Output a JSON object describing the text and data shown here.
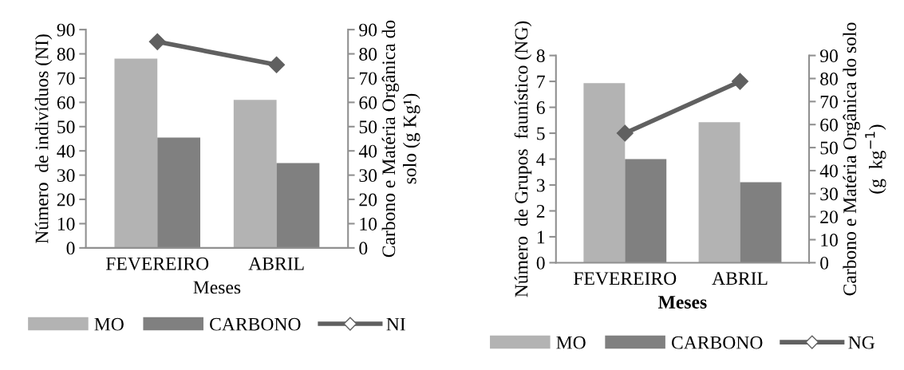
{
  "chart_data": [
    {
      "type": "bar",
      "categories": [
        "FEVEREIRO",
        "ABRIL"
      ],
      "xlabel": "Meses",
      "ylabel": "Número  de indivíduos (NI)",
      "y2label": "Carbono e Matéria Orgânica do\nsolo (g Kg¹)",
      "ylim": [
        0,
        90
      ],
      "yticks": [
        0,
        10,
        20,
        30,
        40,
        50,
        60,
        70,
        80,
        90
      ],
      "y2lim": [
        0,
        90
      ],
      "y2ticks": [
        0,
        10,
        20,
        30,
        40,
        50,
        60,
        70,
        80,
        90
      ],
      "legend": "bottom",
      "grid": false,
      "series": [
        {
          "name": "MO",
          "color": "#b3b3b3",
          "axis": "y2",
          "values": [
            78,
            61
          ]
        },
        {
          "name": "CARBONO",
          "color": "#808080",
          "axis": "y2",
          "values": [
            45.5,
            35
          ]
        },
        {
          "name": "NI",
          "color": "#606060",
          "type": "line",
          "marker": "diamond",
          "values": [
            85,
            75.5
          ]
        }
      ]
    },
    {
      "type": "bar",
      "categories": [
        "FEVEREIRO",
        "ABRIL"
      ],
      "xlabel": "Meses",
      "ylabel": "Número  de Grupos  faunístico (NG)",
      "y2label": "Carbono e Matéria Orgânica do solo\n(g  kg$^{−1}$)",
      "ylim": [
        0,
        8
      ],
      "yticks": [
        0,
        1,
        2,
        3,
        4,
        5,
        6,
        7,
        8
      ],
      "y2lim": [
        0,
        90
      ],
      "y2ticks": [
        0,
        10,
        20,
        30,
        40,
        50,
        60,
        70,
        80,
        90
      ],
      "legend": "bottom",
      "grid": false,
      "series": [
        {
          "name": "MO",
          "color": "#b3b3b3",
          "axis": "y2",
          "values": [
            78,
            61
          ]
        },
        {
          "name": "CARBONO",
          "color": "#808080",
          "axis": "y2",
          "values": [
            45,
            35
          ]
        },
        {
          "name": "NG",
          "color": "#606060",
          "type": "line",
          "marker": "diamond",
          "values": [
            5,
            7
          ]
        }
      ]
    }
  ]
}
